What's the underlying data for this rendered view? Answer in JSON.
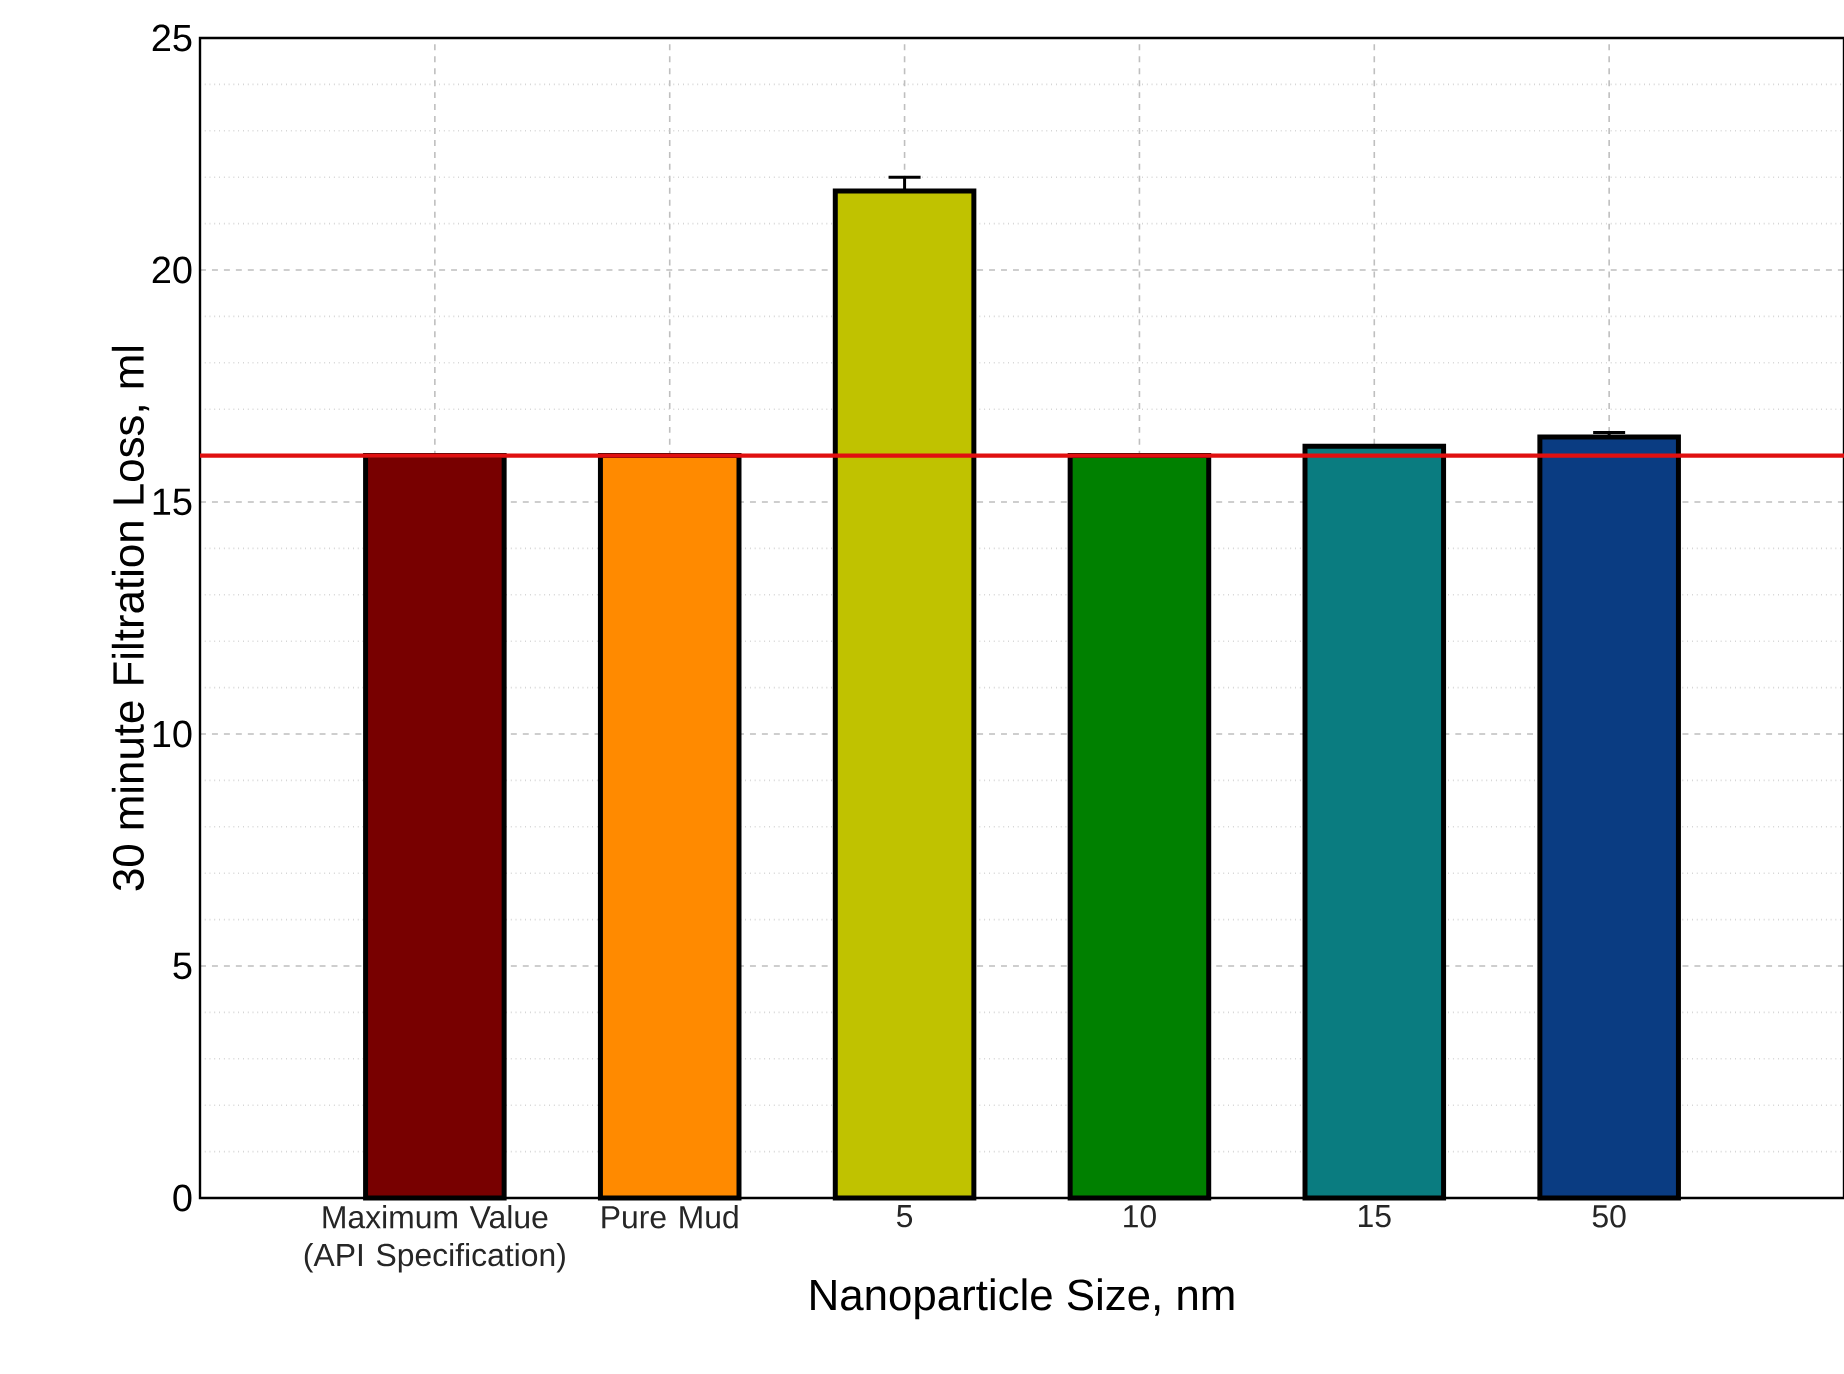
{
  "chart_data": {
    "type": "bar",
    "xlabel": "Nanoparticle Size, nm",
    "ylabel": "30 minute Filtration Loss, ml",
    "categories": [
      "Maximum Value (API Specification)",
      "Pure Mud",
      "5",
      "10",
      "15",
      "50"
    ],
    "values": [
      16.0,
      16.0,
      21.7,
      16.0,
      16.2,
      16.4
    ],
    "errors": [
      null,
      null,
      0.3,
      null,
      null,
      0.1
    ],
    "colors": [
      "#780000",
      "#ff8a00",
      "#c0c200",
      "#008000",
      "#0a7c80",
      "#0a3c82"
    ],
    "ylim": [
      0,
      25
    ],
    "yticks": [
      0,
      5,
      10,
      15,
      20,
      25
    ],
    "grid": true,
    "ref_lines": [
      {
        "axis": "y",
        "value": 16,
        "color": "#e01010"
      }
    ]
  }
}
